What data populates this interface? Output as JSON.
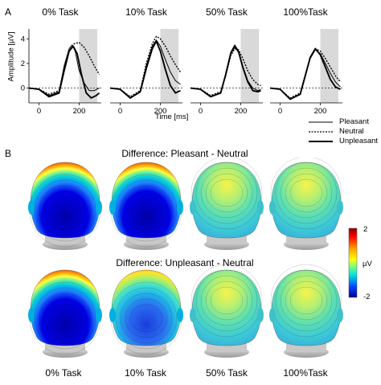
{
  "panel_a": {
    "label": "A",
    "conditions": [
      "0% Task",
      "10% Task",
      "50% Task",
      "100%Task"
    ],
    "ylabel": "Amplitude [µV]",
    "yticks": [
      "0",
      "2",
      "4"
    ],
    "xticks": [
      "0",
      "200"
    ],
    "xlabel": "Time [ms]",
    "legend": [
      "Pleasant",
      "Neutral",
      "Unpleasant"
    ]
  },
  "panel_b": {
    "label": "B",
    "title_top": "Difference: Pleasant - Neutral",
    "title_bottom": "Difference: Unpleasant - Neutral",
    "conditions": [
      "0% Task",
      "10% Task",
      "50% Task",
      "100%Task"
    ],
    "colorbar": {
      "max": "2",
      "unit": "µV",
      "min": "-2"
    }
  },
  "chart_data": [
    {
      "type": "line",
      "subplot": "0% Task",
      "x_unit": "ms",
      "xlim": [
        -50,
        310
      ],
      "ylim": [
        -1.2,
        4.8
      ],
      "shaded_window": [
        200,
        290
      ],
      "series": [
        {
          "name": "Pleasant",
          "x": [
            -50,
            0,
            50,
            100,
            125,
            150,
            165,
            180,
            200,
            225,
            250,
            275,
            300
          ],
          "y": [
            0,
            -0.1,
            -0.6,
            -0.3,
            1.8,
            3.2,
            3.5,
            3.0,
            1.4,
            0.4,
            -0.2,
            -0.2,
            0
          ]
        },
        {
          "name": "Neutral",
          "x": [
            -50,
            0,
            50,
            100,
            125,
            150,
            175,
            200,
            225,
            250,
            275,
            300
          ],
          "y": [
            0,
            -0.1,
            -0.5,
            -0.2,
            1.6,
            3.0,
            3.6,
            3.7,
            3.3,
            2.6,
            1.8,
            1.1
          ]
        },
        {
          "name": "Unpleasant",
          "x": [
            -50,
            0,
            50,
            100,
            125,
            150,
            170,
            190,
            210,
            235,
            260,
            285,
            300
          ],
          "y": [
            0,
            -0.1,
            -0.7,
            -0.4,
            1.4,
            3.0,
            3.4,
            2.8,
            1.2,
            -0.4,
            -0.8,
            -0.6,
            -0.4
          ]
        }
      ]
    },
    {
      "type": "line",
      "subplot": "10% Task",
      "x_unit": "ms",
      "xlim": [
        -50,
        310
      ],
      "ylim": [
        -1.2,
        4.8
      ],
      "shaded_window": [
        200,
        290
      ],
      "series": [
        {
          "name": "Pleasant",
          "x": [
            -50,
            0,
            50,
            100,
            130,
            160,
            180,
            200,
            225,
            250,
            275,
            300
          ],
          "y": [
            0,
            -0.1,
            -0.8,
            -0.3,
            1.8,
            3.4,
            3.9,
            3.4,
            2.3,
            1.3,
            0.6,
            0.3
          ]
        },
        {
          "name": "Neutral",
          "x": [
            -50,
            0,
            50,
            100,
            130,
            160,
            180,
            200,
            225,
            250,
            275,
            300
          ],
          "y": [
            0,
            -0.1,
            -0.7,
            -0.2,
            2.0,
            3.6,
            4.2,
            4.0,
            3.4,
            2.6,
            1.9,
            1.3
          ]
        },
        {
          "name": "Unpleasant",
          "x": [
            -50,
            0,
            50,
            100,
            130,
            160,
            180,
            200,
            225,
            250,
            275,
            300
          ],
          "y": [
            0,
            -0.1,
            -0.8,
            -0.3,
            1.6,
            3.2,
            3.8,
            3.0,
            1.5,
            0.2,
            -0.4,
            -0.2
          ]
        }
      ]
    },
    {
      "type": "line",
      "subplot": "50% Task",
      "x_unit": "ms",
      "xlim": [
        -50,
        310
      ],
      "ylim": [
        -1.2,
        4.8
      ],
      "shaded_window": [
        200,
        290
      ],
      "series": [
        {
          "name": "Pleasant",
          "x": [
            -50,
            0,
            50,
            100,
            125,
            150,
            170,
            190,
            210,
            235,
            260,
            285,
            300
          ],
          "y": [
            0,
            -0.1,
            -0.7,
            -0.4,
            1.2,
            2.9,
            3.5,
            3.0,
            1.8,
            0.6,
            0.0,
            -0.2,
            -0.1
          ]
        },
        {
          "name": "Neutral",
          "x": [
            -50,
            0,
            50,
            100,
            125,
            150,
            170,
            190,
            210,
            235,
            260,
            285,
            300
          ],
          "y": [
            0,
            -0.1,
            -0.6,
            -0.3,
            1.0,
            2.6,
            3.2,
            3.1,
            2.4,
            1.4,
            0.7,
            0.3,
            0.2
          ]
        },
        {
          "name": "Unpleasant",
          "x": [
            -50,
            0,
            50,
            100,
            125,
            150,
            170,
            190,
            210,
            235,
            260,
            285,
            300
          ],
          "y": [
            0,
            -0.1,
            -0.7,
            -0.4,
            1.1,
            2.8,
            3.4,
            2.9,
            1.7,
            0.5,
            -0.2,
            -0.3,
            -0.2
          ]
        }
      ]
    },
    {
      "type": "line",
      "subplot": "100%Task",
      "x_unit": "ms",
      "xlim": [
        -50,
        310
      ],
      "ylim": [
        -1.2,
        4.8
      ],
      "shaded_window": [
        200,
        290
      ],
      "series": [
        {
          "name": "Pleasant",
          "x": [
            -50,
            0,
            50,
            100,
            125,
            150,
            175,
            200,
            225,
            250,
            275,
            300
          ],
          "y": [
            0,
            -0.1,
            -0.9,
            -0.5,
            1.0,
            2.4,
            3.1,
            2.8,
            2.0,
            1.2,
            0.5,
            0.1
          ]
        },
        {
          "name": "Neutral",
          "x": [
            -50,
            0,
            50,
            100,
            125,
            150,
            175,
            200,
            225,
            250,
            275,
            300
          ],
          "y": [
            0,
            -0.1,
            -0.8,
            -0.4,
            1.1,
            2.5,
            3.2,
            3.0,
            2.4,
            1.7,
            1.0,
            0.5
          ]
        },
        {
          "name": "Unpleasant",
          "x": [
            -50,
            0,
            50,
            100,
            125,
            150,
            175,
            200,
            225,
            250,
            275,
            300
          ],
          "y": [
            0,
            -0.1,
            -0.9,
            -0.5,
            1.0,
            2.5,
            3.2,
            2.7,
            1.7,
            0.7,
            0.1,
            -0.1
          ]
        }
      ]
    }
  ],
  "topomaps": {
    "pleasant_minus_neutral": [
      {
        "condition": "0% Task",
        "pattern": "strong-occipital-negative"
      },
      {
        "condition": "10% Task",
        "pattern": "strong-occipital-negative"
      },
      {
        "condition": "50% Task",
        "pattern": "weak"
      },
      {
        "condition": "100%Task",
        "pattern": "weak"
      }
    ],
    "unpleasant_minus_neutral": [
      {
        "condition": "0% Task",
        "pattern": "strong-occipital-negative"
      },
      {
        "condition": "10% Task",
        "pattern": "moderate-occipital-negative"
      },
      {
        "condition": "50% Task",
        "pattern": "weak"
      },
      {
        "condition": "100%Task",
        "pattern": "weak"
      }
    ]
  },
  "colors": {
    "shade": "#d9d9d9",
    "colormap": [
      "#00008f",
      "#0000ff",
      "#00bfff",
      "#40e0d0",
      "#7fff7f",
      "#ffff00",
      "#ff8c00",
      "#ff0000",
      "#8b0000"
    ]
  }
}
